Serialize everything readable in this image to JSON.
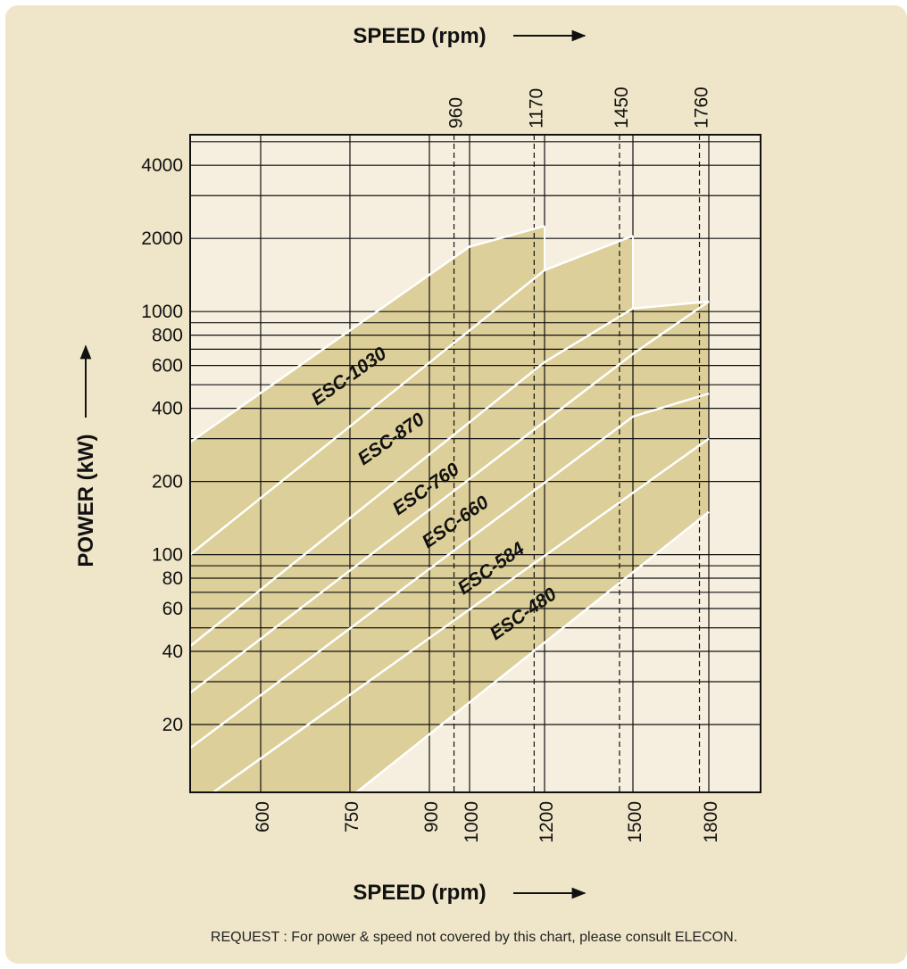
{
  "chart_data": {
    "type": "area",
    "title": "",
    "xlabel_top": "SPEED (rpm)",
    "xlabel": "SPEED (rpm)",
    "ylabel": "POWER (kW)",
    "x_scale": "log",
    "y_scale": "log",
    "xlim": [
      500,
      2000
    ],
    "ylim": [
      10,
      6000
    ],
    "grid": true,
    "bottom_ticks": [
      600,
      750,
      900,
      1000,
      1200,
      1500,
      1800
    ],
    "top_ticks": [
      960,
      1170,
      1450,
      1760
    ],
    "y_ticks": [
      20,
      40,
      60,
      80,
      100,
      200,
      400,
      600,
      800,
      1000,
      2000,
      4000
    ],
    "envelope": {
      "lower": {
        "x": [
          500,
          1800
        ],
        "y": [
          3,
          150
        ]
      },
      "upper": {
        "x": [
          500,
          1000,
          1200,
          1200,
          1500,
          1500,
          1800,
          1800
        ],
        "y": [
          290,
          1850,
          2250,
          1480,
          2050,
          1030,
          1100,
          1100
        ]
      }
    },
    "series": [
      {
        "name": "ESC-1030",
        "x": [
          500,
          1000,
          1200
        ],
        "y": [
          290,
          1850,
          2250
        ]
      },
      {
        "name": "ESC-870",
        "x": [
          500,
          1200,
          1500
        ],
        "y": [
          100,
          1480,
          2050
        ]
      },
      {
        "name": "ESC-760",
        "x": [
          500,
          1200,
          1500,
          1800
        ],
        "y": [
          42,
          620,
          1030,
          1100
        ]
      },
      {
        "name": "ESC-660",
        "x": [
          500,
          1500,
          1800
        ],
        "y": [
          27,
          670,
          1100
        ]
      },
      {
        "name": "ESC-584",
        "x": [
          500,
          1500,
          1800
        ],
        "y": [
          16,
          370,
          460
        ]
      },
      {
        "name": "ESC-480",
        "x": [
          500,
          1800
        ],
        "y": [
          9,
          300
        ]
      }
    ]
  },
  "note": "REQUEST : For power & speed not covered by this chart, please consult ELECON."
}
